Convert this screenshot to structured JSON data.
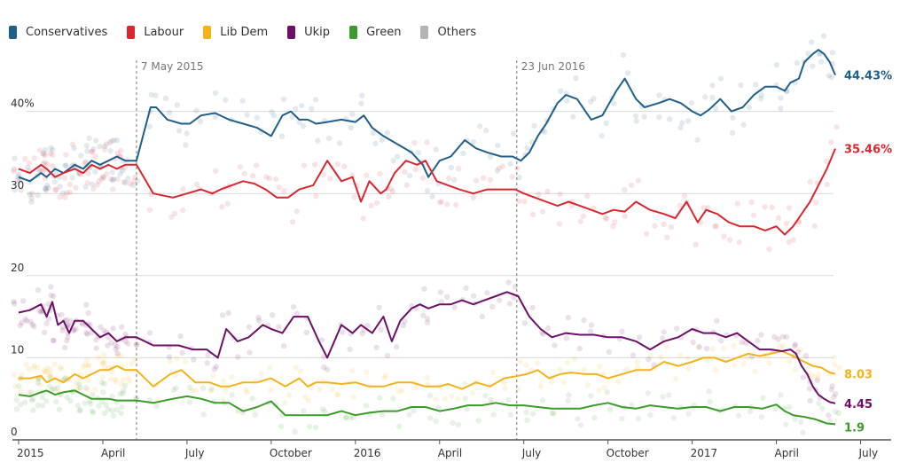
{
  "chart_data": {
    "type": "line",
    "title": "",
    "xlabel": "",
    "ylabel": "",
    "x_unit": "months since Jan 2015",
    "xlim": [
      0,
      30.5
    ],
    "ylim": [
      0,
      50
    ],
    "grid": true,
    "legend_position": "top-left",
    "y_ticks": [
      {
        "value": 0,
        "label": "0"
      },
      {
        "value": 10,
        "label": "10"
      },
      {
        "value": 20,
        "label": "20"
      },
      {
        "value": 30,
        "label": "30"
      },
      {
        "value": 40,
        "label": "40%"
      }
    ],
    "x_ticks": [
      {
        "value": 0,
        "label": "2015"
      },
      {
        "value": 3,
        "label": "April"
      },
      {
        "value": 6,
        "label": "July"
      },
      {
        "value": 9,
        "label": "October"
      },
      {
        "value": 12,
        "label": "2016"
      },
      {
        "value": 15,
        "label": "April"
      },
      {
        "value": 18,
        "label": "July"
      },
      {
        "value": 21,
        "label": "October"
      },
      {
        "value": 24,
        "label": "2017"
      },
      {
        "value": 27,
        "label": "April"
      },
      {
        "value": 30,
        "label": "July"
      }
    ],
    "annotations": [
      {
        "x": 4.2,
        "label": "7 May 2015"
      },
      {
        "x": 17.75,
        "label": "23 Jun 2016"
      }
    ],
    "series": [
      {
        "name": "Conservatives",
        "color": "#1f5f8b",
        "end_label": "44.43%",
        "x": [
          0,
          0.4,
          0.8,
          1.0,
          1.3,
          1.6,
          2.0,
          2.3,
          2.6,
          2.9,
          3.2,
          3.5,
          3.8,
          4.2,
          4.7,
          4.9,
          5.3,
          5.8,
          6.1,
          6.5,
          7.0,
          7.5,
          8.0,
          8.5,
          9.0,
          9.4,
          9.7,
          10.0,
          10.3,
          10.6,
          11.0,
          11.5,
          12.0,
          12.3,
          12.6,
          13.0,
          13.5,
          14.0,
          14.4,
          14.6,
          15.0,
          15.4,
          15.9,
          16.3,
          16.7,
          17.2,
          17.6,
          17.9,
          18.2,
          18.5,
          18.8,
          19.2,
          19.5,
          19.9,
          20.4,
          20.8,
          21.3,
          21.6,
          22.0,
          22.3,
          22.8,
          23.2,
          23.6,
          24.0,
          24.3,
          24.6,
          25.0,
          25.4,
          25.8,
          26.2,
          26.6,
          27.0,
          27.3,
          27.5,
          27.8,
          28.0,
          28.3,
          28.5,
          28.7,
          28.9,
          29.1
        ],
        "values": [
          32,
          31.5,
          32.5,
          32,
          33,
          32.5,
          33.5,
          33,
          34,
          33.5,
          34,
          34.5,
          34,
          34,
          40.5,
          40.5,
          39,
          38.5,
          38.5,
          39.5,
          39.8,
          39,
          38.5,
          38,
          37,
          39.5,
          40,
          39,
          39,
          38.5,
          38.7,
          39,
          38.7,
          39.5,
          38,
          37,
          36,
          35,
          33.5,
          32,
          34,
          34.5,
          36.5,
          35.5,
          35,
          34.5,
          34.5,
          34,
          35,
          37,
          38.5,
          41,
          42,
          41.5,
          39,
          39.5,
          42.5,
          44,
          41.5,
          40.5,
          41,
          41.5,
          41,
          40,
          39.5,
          40.2,
          41.5,
          40,
          40.5,
          42,
          43,
          43,
          42.5,
          43.5,
          44,
          46,
          47,
          47.5,
          47,
          46,
          44.43
        ]
      },
      {
        "name": "Labour",
        "color": "#d9262f",
        "end_label": "35.46%",
        "x": [
          0,
          0.4,
          0.8,
          1.0,
          1.3,
          1.6,
          2.0,
          2.3,
          2.6,
          2.9,
          3.2,
          3.5,
          3.8,
          4.2,
          4.8,
          5.5,
          6.0,
          6.5,
          6.9,
          7.2,
          7.6,
          8.0,
          8.4,
          8.8,
          9.2,
          9.6,
          10.0,
          10.5,
          11.0,
          11.5,
          11.9,
          12.2,
          12.5,
          12.9,
          13.1,
          13.4,
          13.8,
          14.2,
          14.5,
          14.9,
          15.3,
          15.7,
          16.2,
          16.7,
          17.2,
          17.7,
          18.0,
          18.4,
          18.8,
          19.2,
          19.6,
          20.0,
          20.4,
          20.8,
          21.2,
          21.6,
          22.0,
          22.5,
          23.0,
          23.4,
          23.8,
          24.2,
          24.5,
          24.9,
          25.3,
          25.7,
          26.2,
          26.6,
          27.0,
          27.3,
          27.6,
          27.9,
          28.2,
          28.5,
          28.8,
          29.1
        ],
        "values": [
          33,
          32.5,
          33.5,
          33,
          32,
          32.5,
          33,
          32.5,
          33.5,
          33,
          33.5,
          33,
          33.5,
          33.5,
          30,
          29.5,
          30,
          30.5,
          30,
          30.5,
          31,
          31.5,
          31.2,
          30.5,
          29.5,
          29.5,
          30.5,
          31,
          34,
          31.5,
          32,
          29,
          31.5,
          30,
          30.5,
          32.5,
          34,
          33.5,
          34,
          31.5,
          31,
          30.5,
          30,
          30.5,
          30.5,
          30.5,
          30,
          29.5,
          29,
          28.5,
          29,
          28.5,
          28,
          27.5,
          28,
          27.8,
          29,
          28,
          27.5,
          27,
          29,
          26.5,
          28,
          27.5,
          26.5,
          26,
          26,
          25.5,
          26,
          25,
          26,
          27.5,
          29,
          31,
          33,
          35.46
        ]
      },
      {
        "name": "Lib Dem",
        "color": "#f5b21a",
        "end_label": "8.03",
        "x": [
          0,
          0.4,
          0.8,
          1.0,
          1.3,
          1.6,
          2.0,
          2.3,
          2.6,
          2.9,
          3.2,
          3.5,
          3.8,
          4.2,
          4.8,
          5.4,
          5.8,
          6.3,
          6.8,
          7.2,
          7.5,
          8.0,
          8.5,
          9.0,
          9.5,
          10.0,
          10.3,
          10.6,
          11.0,
          11.5,
          12.0,
          12.5,
          13.0,
          13.5,
          14.0,
          14.5,
          15.0,
          15.3,
          15.8,
          16.3,
          16.8,
          17.3,
          17.8,
          18.1,
          18.5,
          18.9,
          19.3,
          19.7,
          20.2,
          20.6,
          21.0,
          21.5,
          22.0,
          22.5,
          23.0,
          23.5,
          24.0,
          24.4,
          24.8,
          25.2,
          25.6,
          26.0,
          26.4,
          26.8,
          27.2,
          27.6,
          28.0,
          28.3,
          28.6,
          28.9,
          29.1
        ],
        "values": [
          7.5,
          7.5,
          7.8,
          7,
          7.5,
          7,
          8,
          7.5,
          8,
          8.5,
          8.5,
          9,
          8.5,
          8.5,
          6.5,
          8,
          8.5,
          7,
          7,
          6.5,
          6.5,
          7,
          7,
          7.5,
          6.5,
          7.5,
          6.5,
          7,
          7,
          6.8,
          7,
          6.5,
          6.5,
          7,
          7,
          6.5,
          6.5,
          6.8,
          6.2,
          7,
          6.5,
          7.5,
          7.8,
          8,
          8.5,
          7.5,
          8,
          8.2,
          8,
          8,
          7.5,
          8,
          8.5,
          8.5,
          9.5,
          9,
          9.5,
          10,
          10,
          9.5,
          10,
          10.5,
          10.2,
          10.5,
          10.8,
          10.2,
          9.5,
          9,
          8.8,
          8.2,
          8.03
        ]
      },
      {
        "name": "Ukip",
        "color": "#6e1068",
        "end_label": "4.45",
        "x": [
          0,
          0.4,
          0.8,
          1.0,
          1.2,
          1.4,
          1.6,
          1.8,
          2.0,
          2.3,
          2.6,
          2.9,
          3.2,
          3.5,
          3.8,
          4.2,
          4.8,
          5.2,
          5.7,
          6.2,
          6.7,
          7.1,
          7.4,
          7.8,
          8.2,
          8.7,
          9.0,
          9.4,
          9.8,
          10.3,
          10.7,
          11.0,
          11.5,
          11.9,
          12.2,
          12.6,
          13.0,
          13.3,
          13.6,
          14.0,
          14.3,
          14.6,
          15.0,
          15.4,
          15.8,
          16.2,
          16.6,
          17.0,
          17.4,
          17.8,
          18.2,
          18.6,
          19.0,
          19.5,
          20.0,
          20.5,
          21.0,
          21.5,
          22.0,
          22.5,
          23.0,
          23.5,
          24.0,
          24.4,
          24.8,
          25.2,
          25.6,
          26.0,
          26.4,
          26.8,
          27.2,
          27.5,
          27.7,
          27.9,
          28.1,
          28.3,
          28.5,
          28.7,
          28.9,
          29.1
        ],
        "values": [
          15.5,
          15.8,
          16.5,
          15,
          16.8,
          14,
          14.5,
          13,
          14.5,
          14.5,
          13.5,
          12.5,
          13,
          12,
          12.5,
          12.5,
          11.5,
          11.5,
          11.5,
          11,
          11,
          10,
          13.5,
          12,
          12.5,
          14,
          13.5,
          13,
          15,
          15,
          12,
          10,
          14,
          13,
          14,
          13,
          15,
          12,
          14.5,
          16,
          16.5,
          16,
          16.5,
          16.5,
          17,
          16.5,
          17,
          17.5,
          18,
          17.5,
          15,
          13.5,
          12.5,
          13,
          12.8,
          12.8,
          12.5,
          12.5,
          12,
          11,
          12,
          12.5,
          13.5,
          13,
          13,
          12.5,
          13,
          12,
          11,
          11,
          10.8,
          11,
          10.5,
          9,
          8,
          6.5,
          5.5,
          5,
          4.6,
          4.45
        ]
      },
      {
        "name": "Green",
        "color": "#3c9c2b",
        "end_label": "1.9",
        "x": [
          0,
          0.4,
          0.8,
          1.0,
          1.3,
          1.6,
          2.0,
          2.3,
          2.6,
          2.9,
          3.2,
          3.5,
          3.8,
          4.2,
          4.8,
          5.5,
          6.0,
          6.5,
          7.0,
          7.5,
          8.0,
          8.5,
          9.0,
          9.5,
          10.0,
          10.5,
          11.0,
          11.5,
          12.0,
          12.5,
          13.0,
          13.5,
          14.0,
          14.5,
          15.0,
          15.5,
          16.0,
          16.5,
          17.0,
          17.5,
          18.0,
          18.5,
          19.0,
          19.5,
          20.0,
          20.5,
          21.0,
          21.5,
          22.0,
          22.5,
          23.0,
          23.5,
          24.0,
          24.5,
          25.0,
          25.5,
          26.0,
          26.5,
          27.0,
          27.3,
          27.6,
          28.0,
          28.4,
          28.8,
          29.1
        ],
        "values": [
          5.5,
          5.3,
          5.8,
          6,
          5.5,
          5.8,
          6,
          5.5,
          5,
          5,
          5,
          4.8,
          4.8,
          4.8,
          4.5,
          5,
          5.3,
          5,
          4.5,
          4.5,
          3.5,
          4,
          4.7,
          3,
          3,
          3,
          3,
          3.5,
          3,
          3.3,
          3.5,
          3.5,
          4,
          4,
          3.5,
          3.8,
          4.2,
          4.2,
          4.5,
          4.2,
          4.2,
          4,
          3.8,
          3.8,
          3.8,
          4.2,
          4.5,
          4,
          3.8,
          4.2,
          4,
          3.8,
          4,
          4,
          3.5,
          4,
          4,
          3.8,
          4.3,
          3.5,
          3,
          2.8,
          2.5,
          2,
          1.9
        ]
      }
    ],
    "others_series": {
      "name": "Others",
      "color": "#b3b3b3"
    }
  },
  "legend": [
    {
      "label": "Conservatives",
      "color": "#1f5f8b"
    },
    {
      "label": "Labour",
      "color": "#d9262f"
    },
    {
      "label": "Lib Dem",
      "color": "#f5b21a"
    },
    {
      "label": "Ukip",
      "color": "#6e1068"
    },
    {
      "label": "Green",
      "color": "#3c9c2b"
    },
    {
      "label": "Others",
      "color": "#b3b3b3"
    }
  ]
}
